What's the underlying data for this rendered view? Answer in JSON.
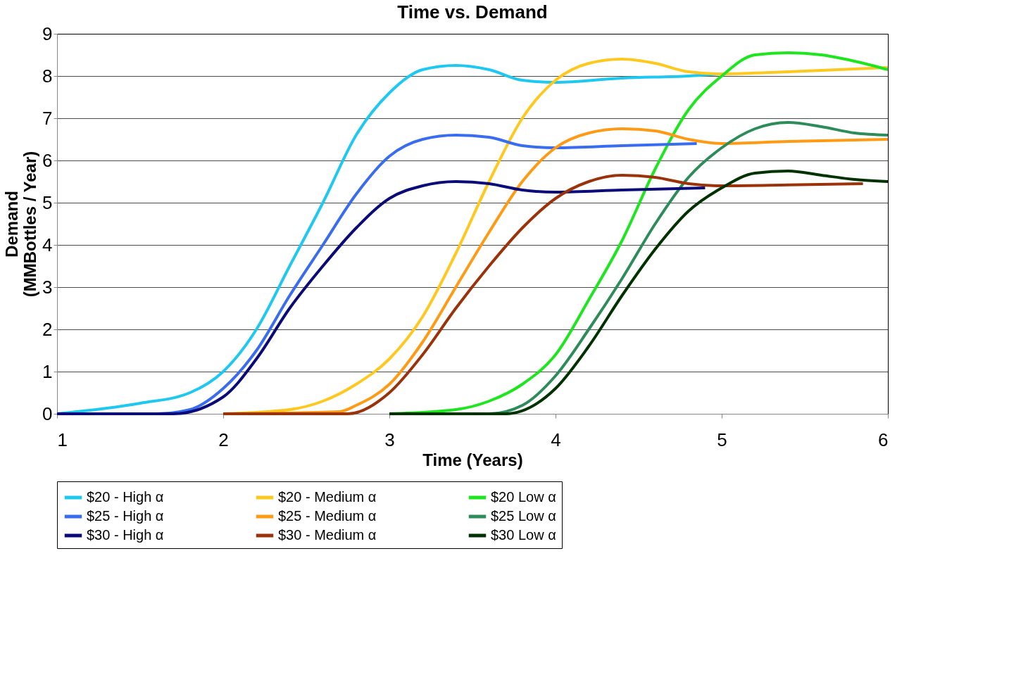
{
  "chart_data": {
    "type": "line",
    "title": "Time vs. Demand",
    "xlabel": "Time (Years)",
    "ylabel": "Demand\n(MMBottles / Year)",
    "xlim": [
      1,
      6
    ],
    "xticks": [
      1,
      2,
      3,
      4,
      5,
      6
    ],
    "ylim": [
      0,
      9
    ],
    "yticks": [
      0,
      1,
      2,
      3,
      4,
      5,
      6,
      7,
      8,
      9
    ],
    "grid": "y",
    "legend": "bottom",
    "marker": "none",
    "line_style": "solid",
    "series": [
      {
        "name": "$20 - High α",
        "color": "#1ec8f0",
        "x": [
          1,
          1.5,
          1.8,
          2.0,
          2.2,
          2.4,
          2.6,
          2.8,
          3.0,
          3.2,
          3.4,
          3.6,
          3.8,
          4.0,
          4.4,
          4.8,
          5.0
        ],
        "values": [
          0,
          0.25,
          0.5,
          1.0,
          2.0,
          3.5,
          5.0,
          6.6,
          7.6,
          8.15,
          8.25,
          8.15,
          7.9,
          7.85,
          7.95,
          8.0,
          8.05
        ]
      },
      {
        "name": "$20 - Medium α",
        "color": "#ffc81e",
        "x": [
          2.0,
          2.4,
          2.6,
          2.8,
          3.0,
          3.2,
          3.4,
          3.6,
          3.8,
          4.0,
          4.2,
          4.4,
          4.6,
          4.8,
          5.0,
          5.4,
          6.0
        ],
        "values": [
          0,
          0.1,
          0.3,
          0.7,
          1.3,
          2.3,
          3.8,
          5.5,
          7.0,
          7.9,
          8.3,
          8.4,
          8.3,
          8.1,
          8.05,
          8.1,
          8.2
        ]
      },
      {
        "name": "$20 Low α",
        "color": "#1ee61e",
        "x": [
          3.0,
          3.4,
          3.6,
          3.8,
          4.0,
          4.2,
          4.4,
          4.6,
          4.8,
          5.0,
          5.2,
          5.4,
          5.6,
          5.8,
          6.0
        ],
        "values": [
          0,
          0.1,
          0.3,
          0.7,
          1.4,
          2.7,
          4.1,
          5.8,
          7.2,
          8.0,
          8.5,
          8.55,
          8.5,
          8.35,
          8.15
        ]
      },
      {
        "name": "$25 - High α",
        "color": "#3a6cf0",
        "x": [
          1,
          1.6,
          1.8,
          2.0,
          2.2,
          2.4,
          2.6,
          2.8,
          3.0,
          3.2,
          3.4,
          3.6,
          3.8,
          4.0,
          4.4,
          4.85
        ],
        "values": [
          0,
          0,
          0.1,
          0.6,
          1.5,
          2.8,
          4.0,
          5.2,
          6.1,
          6.5,
          6.6,
          6.55,
          6.35,
          6.3,
          6.35,
          6.4
        ]
      },
      {
        "name": "$25 - Medium α",
        "color": "#ff9a14",
        "x": [
          2.0,
          2.7,
          2.8,
          3.0,
          3.2,
          3.4,
          3.6,
          3.8,
          4.0,
          4.2,
          4.4,
          4.6,
          4.8,
          5.0,
          5.4,
          6.0
        ],
        "values": [
          0,
          0.05,
          0.2,
          0.7,
          1.7,
          3.0,
          4.3,
          5.5,
          6.3,
          6.65,
          6.75,
          6.7,
          6.5,
          6.4,
          6.45,
          6.5
        ]
      },
      {
        "name": "$25 Low α",
        "color": "#2e8c5a",
        "x": [
          3.0,
          3.6,
          3.8,
          4.0,
          4.2,
          4.4,
          4.6,
          4.8,
          5.0,
          5.2,
          5.4,
          5.6,
          5.8,
          6.0
        ],
        "values": [
          0,
          0,
          0.2,
          0.9,
          2.0,
          3.2,
          4.5,
          5.6,
          6.3,
          6.75,
          6.9,
          6.8,
          6.65,
          6.6
        ]
      },
      {
        "name": "$30 - High α",
        "color": "#0a0a78",
        "x": [
          1,
          1.7,
          2.0,
          2.2,
          2.4,
          2.6,
          2.8,
          3.0,
          3.2,
          3.4,
          3.6,
          3.8,
          4.0,
          4.4,
          4.9
        ],
        "values": [
          0,
          0,
          0.4,
          1.3,
          2.5,
          3.5,
          4.4,
          5.1,
          5.4,
          5.5,
          5.45,
          5.3,
          5.25,
          5.3,
          5.35
        ]
      },
      {
        "name": "$30 - Medium α",
        "color": "#9a320a",
        "x": [
          2.0,
          2.75,
          3.0,
          3.2,
          3.4,
          3.6,
          3.8,
          4.0,
          4.2,
          4.4,
          4.6,
          4.8,
          5.0,
          5.4,
          5.85
        ],
        "values": [
          0,
          0,
          0.5,
          1.4,
          2.5,
          3.5,
          4.4,
          5.1,
          5.5,
          5.65,
          5.6,
          5.45,
          5.4,
          5.42,
          5.45
        ]
      },
      {
        "name": "$30 Low α",
        "color": "#003200",
        "x": [
          3.0,
          3.7,
          4.0,
          4.2,
          4.4,
          4.6,
          4.8,
          5.0,
          5.2,
          5.4,
          5.6,
          5.8,
          6.0
        ],
        "values": [
          0,
          0,
          0.6,
          1.6,
          2.8,
          3.9,
          4.8,
          5.35,
          5.7,
          5.75,
          5.65,
          5.55,
          5.5
        ]
      }
    ]
  }
}
